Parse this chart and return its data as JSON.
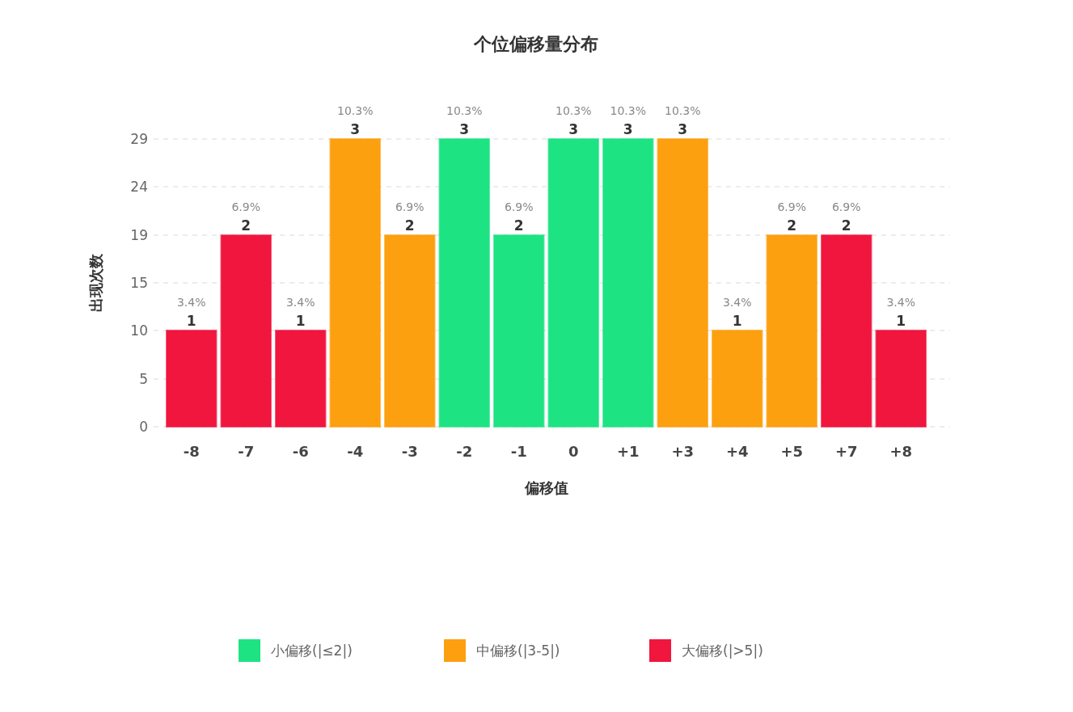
{
  "chart_data": {
    "type": "bar",
    "title": "个位偏移量分布",
    "xlabel": "偏移值",
    "ylabel": "出现次数",
    "categories": [
      "-8",
      "-7",
      "-6",
      "-4",
      "-3",
      "-2",
      "-1",
      "0",
      "+1",
      "+3",
      "+4",
      "+5",
      "+7",
      "+8"
    ],
    "series": [
      {
        "name": "小偏移(|≤2|)",
        "color": "#1ee383",
        "values": [
          null,
          null,
          null,
          null,
          null,
          29,
          19.3,
          29,
          29,
          null,
          null,
          null,
          null,
          null
        ]
      },
      {
        "name": "中偏移(|3-5|)",
        "color": "#fca010",
        "values": [
          null,
          null,
          null,
          29,
          19.3,
          null,
          null,
          null,
          null,
          29,
          9.7,
          19.3,
          null,
          null
        ]
      },
      {
        "name": "大偏移(|>5|)",
        "color": "#f0163e",
        "values": [
          9.7,
          19.3,
          9.7,
          null,
          null,
          null,
          null,
          null,
          null,
          null,
          null,
          null,
          19.3,
          9.7
        ]
      }
    ],
    "ylim": [
      0,
      29
    ],
    "yticks": [
      0,
      {
        "value": 4.8,
        "label": "5"
      },
      {
        "value": 9.7,
        "label": "10"
      },
      {
        "value": 14.5,
        "label": "15"
      },
      {
        "value": 19.3,
        "label": "19"
      },
      {
        "value": 24.2,
        "label": "24"
      },
      29
    ],
    "grid": "y",
    "legend": "bottom",
    "annotations": [
      {
        "text": "3.4%",
        "x": "-8",
        "y": 9.7
      },
      {
        "text": "1",
        "x": "-8",
        "y": 9.7
      },
      {
        "text": "6.9%",
        "x": "-7",
        "y": 19.3
      },
      {
        "text": "2",
        "x": "-7",
        "y": 19.3
      },
      {
        "text": "3.4%",
        "x": "-6",
        "y": 9.7
      },
      {
        "text": "1",
        "x": "-6",
        "y": 9.7
      },
      {
        "text": "10.3%",
        "x": "-4",
        "y": 29
      },
      {
        "text": "3",
        "x": "-4",
        "y": 29
      },
      {
        "text": "6.9%",
        "x": "-3",
        "y": 19.3
      },
      {
        "text": "2",
        "x": "-3",
        "y": 19.3
      },
      {
        "text": "10.3%",
        "x": "-2",
        "y": 29
      },
      {
        "text": "3",
        "x": "-2",
        "y": 29
      },
      {
        "text": "6.9%",
        "x": "-1",
        "y": 19.3
      },
      {
        "text": "2",
        "x": "-1",
        "y": 19.3
      },
      {
        "text": "10.3%",
        "x": "0",
        "y": 29
      },
      {
        "text": "3",
        "x": "0",
        "y": 29
      },
      {
        "text": "10.3%",
        "x": "+1",
        "y": 29
      },
      {
        "text": "3",
        "x": "+1",
        "y": 29
      },
      {
        "text": "10.3%",
        "x": "+3",
        "y": 29
      },
      {
        "text": "3",
        "x": "+3",
        "y": 29
      },
      {
        "text": "3.4%",
        "x": "+4",
        "y": 9.7
      },
      {
        "text": "1",
        "x": "+4",
        "y": 9.7
      },
      {
        "text": "6.9%",
        "x": "+5",
        "y": 19.3
      },
      {
        "text": "2",
        "x": "+5",
        "y": 19.3
      },
      {
        "text": "6.9%",
        "x": "+7",
        "y": 19.3
      },
      {
        "text": "2",
        "x": "+7",
        "y": 19.3
      },
      {
        "text": "3.4%",
        "x": "+8",
        "y": 9.7
      },
      {
        "text": "1",
        "x": "+8",
        "y": 9.7
      }
    ]
  }
}
